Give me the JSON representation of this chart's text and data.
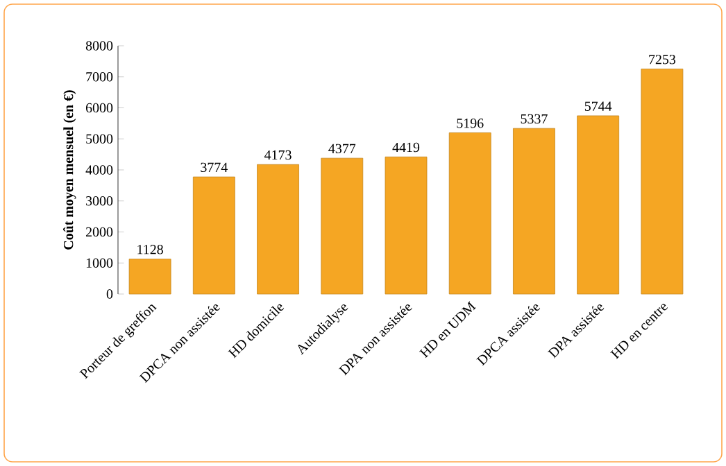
{
  "chart_data": {
    "type": "bar",
    "ylabel": "Coût moyen mensuel (en €)",
    "categories": [
      "Porteur de greffon",
      "DPCA non assistée",
      "HD domicile",
      "Autodialyse",
      "DPA non assistée",
      "HD en UDM",
      "DPCA assistée",
      "DPA assistée",
      "HD en centre"
    ],
    "values": [
      1128,
      3774,
      4173,
      4377,
      4419,
      5196,
      5337,
      5744,
      7253
    ],
    "color": "#f5a623",
    "ylim": [
      0,
      8000
    ],
    "yticks": [
      0,
      1000,
      2000,
      3000,
      4000,
      5000,
      6000,
      7000,
      8000
    ],
    "data_labels": true
  }
}
